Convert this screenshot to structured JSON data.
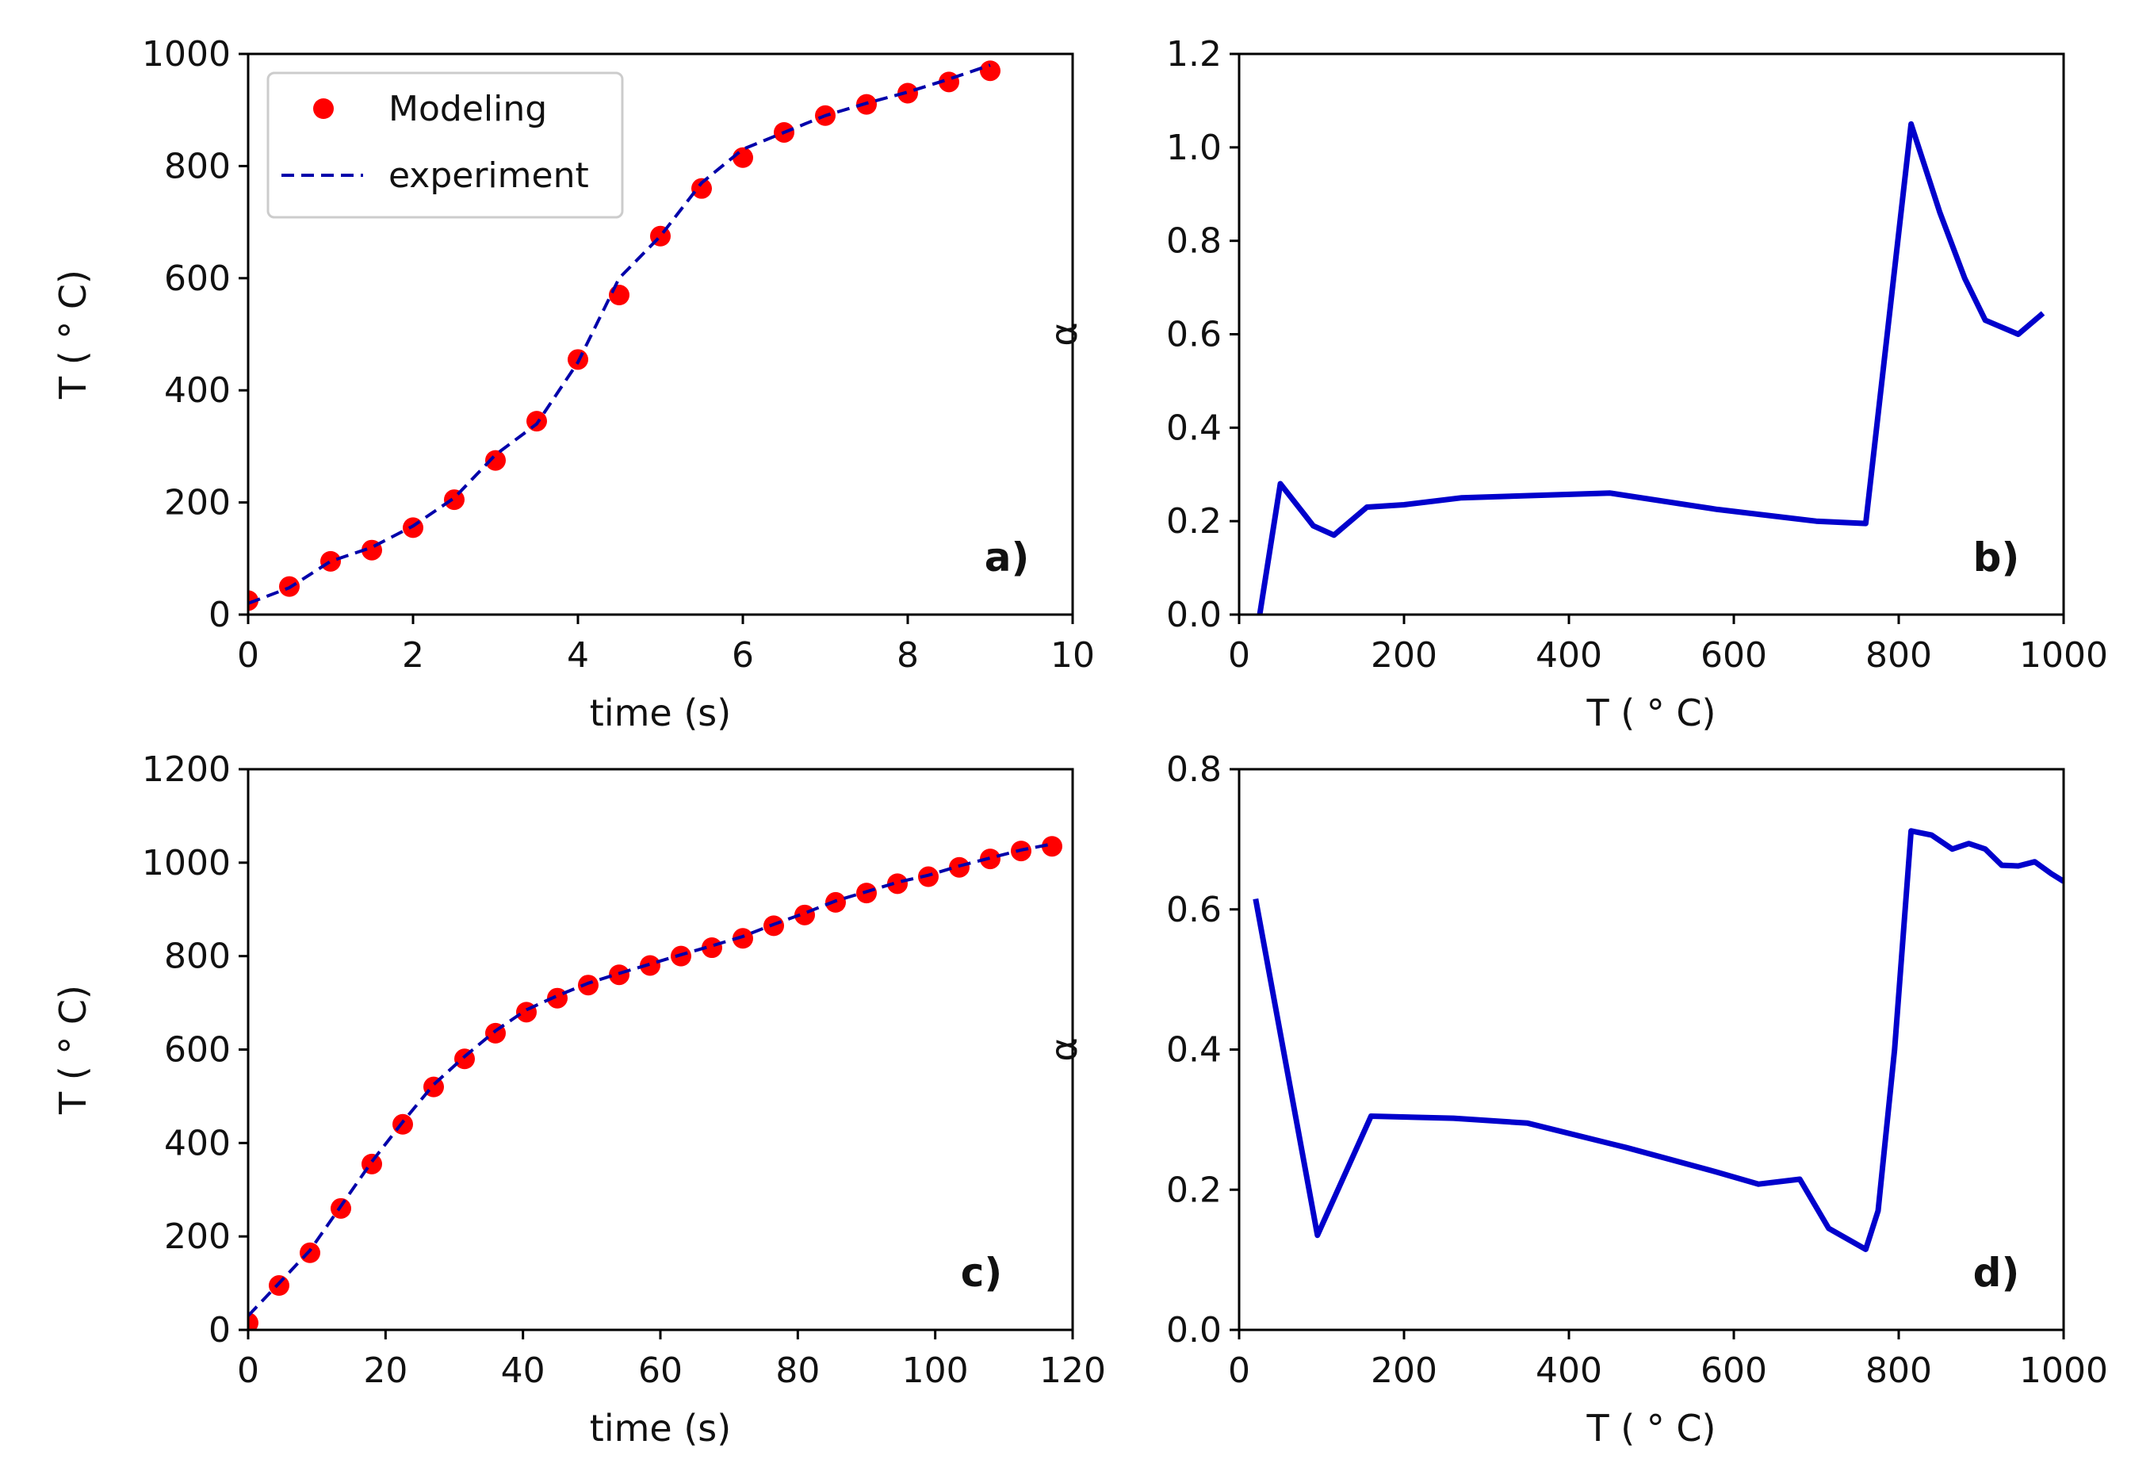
{
  "figure": {
    "background": "#ffffff"
  },
  "chart_data": [
    {
      "id": "a",
      "type": "line",
      "panel_label": "a)",
      "xlabel": "time (s)",
      "ylabel": "T ( ° C)",
      "xlim": [
        0,
        10
      ],
      "ylim": [
        0,
        1000
      ],
      "xticks": [
        0,
        2,
        4,
        6,
        8,
        10
      ],
      "yticks": [
        0,
        200,
        400,
        600,
        800,
        1000
      ],
      "legend": {
        "position": "top-left",
        "entries": [
          {
            "label": "Modeling",
            "series": 0
          },
          {
            "label": "experiment",
            "series": 1
          }
        ]
      },
      "series": [
        {
          "name": "Modeling",
          "style": "markers",
          "color": "#ff0000",
          "x": [
            0,
            0.5,
            1,
            1.5,
            2,
            2.5,
            3,
            3.5,
            4,
            4.5,
            5,
            5.5,
            6,
            6.5,
            7,
            7.5,
            8,
            8.5,
            9
          ],
          "y": [
            25,
            50,
            95,
            115,
            155,
            205,
            275,
            345,
            455,
            570,
            675,
            760,
            815,
            860,
            890,
            910,
            930,
            950,
            970
          ]
        },
        {
          "name": "experiment",
          "style": "dashed",
          "color": "#0000aa",
          "x": [
            0,
            0.5,
            1,
            1.5,
            2,
            2.5,
            3,
            3.5,
            4,
            4.5,
            5,
            5.5,
            6,
            6.5,
            7,
            7.5,
            8,
            8.5,
            9
          ],
          "y": [
            20,
            48,
            95,
            120,
            158,
            208,
            285,
            340,
            450,
            600,
            675,
            770,
            830,
            860,
            890,
            912,
            932,
            955,
            980
          ]
        }
      ]
    },
    {
      "id": "b",
      "type": "line",
      "panel_label": "b)",
      "xlabel": "T ( ° C)",
      "ylabel": "α",
      "xlim": [
        0,
        1000
      ],
      "ylim": [
        0,
        1.2
      ],
      "xticks": [
        0,
        200,
        400,
        600,
        800,
        1000
      ],
      "yticks": [
        "0.0",
        "0.2",
        "0.4",
        "0.6",
        "0.8",
        "1.0",
        "1.2"
      ],
      "series": [
        {
          "name": "alpha",
          "style": "solid",
          "color": "#0000cc",
          "x": [
            25,
            50,
            90,
            115,
            155,
            200,
            270,
            450,
            580,
            700,
            760,
            815,
            850,
            880,
            905,
            945,
            975
          ],
          "y": [
            0,
            0.28,
            0.19,
            0.17,
            0.23,
            0.235,
            0.25,
            0.26,
            0.225,
            0.2,
            0.195,
            1.05,
            0.86,
            0.72,
            0.63,
            0.6,
            0.645
          ]
        }
      ]
    },
    {
      "id": "c",
      "type": "line",
      "panel_label": "c)",
      "xlabel": "time (s)",
      "ylabel": "T ( ° C)",
      "xlim": [
        0,
        120
      ],
      "ylim": [
        0,
        1200
      ],
      "xticks": [
        0,
        20,
        40,
        60,
        80,
        100,
        120
      ],
      "yticks": [
        0,
        200,
        400,
        600,
        800,
        1000,
        1200
      ],
      "series": [
        {
          "name": "Modeling",
          "style": "markers",
          "color": "#ff0000",
          "x": [
            0,
            4.5,
            9,
            13.5,
            18,
            22.5,
            27,
            31.5,
            36,
            40.5,
            45,
            49.5,
            54,
            58.5,
            63,
            67.5,
            72,
            76.5,
            81,
            85.5,
            90,
            94.5,
            99,
            103.5,
            108,
            112.5,
            117
          ],
          "y": [
            15,
            95,
            165,
            260,
            355,
            440,
            520,
            580,
            635,
            680,
            710,
            738,
            760,
            780,
            800,
            818,
            838,
            865,
            888,
            915,
            935,
            955,
            970,
            990,
            1008,
            1025,
            1035
          ]
        },
        {
          "name": "experiment",
          "style": "dashed",
          "color": "#0000aa",
          "x": [
            0,
            4.5,
            9,
            13.5,
            18,
            22.5,
            27,
            31.5,
            36,
            40.5,
            45,
            49.5,
            54,
            58.5,
            63,
            67.5,
            72,
            76.5,
            81,
            85.5,
            90,
            94.5,
            99,
            103.5,
            108,
            112.5,
            117
          ],
          "y": [
            30,
            100,
            170,
            265,
            360,
            445,
            525,
            585,
            640,
            685,
            715,
            742,
            763,
            783,
            803,
            822,
            842,
            868,
            892,
            918,
            938,
            958,
            973,
            993,
            1010,
            1027,
            1040
          ]
        }
      ]
    },
    {
      "id": "d",
      "type": "line",
      "panel_label": "d)",
      "xlabel": "T ( ° C)",
      "ylabel": "α",
      "xlim": [
        0,
        1000
      ],
      "ylim": [
        0,
        0.8
      ],
      "xticks": [
        0,
        200,
        400,
        600,
        800,
        1000
      ],
      "yticks": [
        "0.0",
        "0.2",
        "0.4",
        "0.6",
        "0.8"
      ],
      "series": [
        {
          "name": "alpha",
          "style": "solid",
          "color": "#0000cc",
          "x": [
            20,
            95,
            160,
            260,
            350,
            470,
            580,
            630,
            680,
            715,
            760,
            775,
            795,
            815,
            840,
            865,
            885,
            905,
            925,
            945,
            965,
            985,
            1000
          ],
          "y": [
            0.615,
            0.135,
            0.305,
            0.302,
            0.295,
            0.26,
            0.225,
            0.208,
            0.215,
            0.145,
            0.115,
            0.17,
            0.4,
            0.712,
            0.706,
            0.686,
            0.694,
            0.686,
            0.663,
            0.662,
            0.668,
            0.651,
            0.64
          ]
        }
      ]
    }
  ]
}
